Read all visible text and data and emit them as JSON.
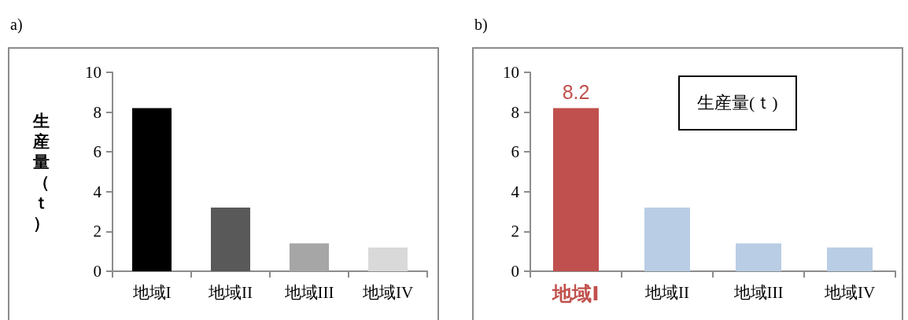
{
  "chart_data": [
    {
      "type": "bar",
      "title": "a)",
      "ylabel": "生産量（ｔ）",
      "categories": [
        "地域I",
        "地域II",
        "地域III",
        "地域IV"
      ],
      "values": [
        8.2,
        3.2,
        1.4,
        1.2
      ],
      "colors": [
        "#000000",
        "#595959",
        "#a6a6a6",
        "#d9d9d9"
      ],
      "ylim": [
        0,
        10
      ],
      "yticks": [
        0,
        2,
        4,
        6,
        8,
        10
      ],
      "grid": false
    },
    {
      "type": "bar",
      "title": "b)",
      "annotations": [
        "生産量(ｔ)"
      ],
      "categories": [
        "地域I",
        "地域II",
        "地域III",
        "地域IV"
      ],
      "values": [
        8.2,
        3.2,
        1.4,
        1.2
      ],
      "colors": [
        "#c0504d",
        "#b9cde5",
        "#b9cde5",
        "#b9cde5"
      ],
      "value_labels": [
        "8.2",
        null,
        null,
        null
      ],
      "ylim": [
        0,
        10
      ],
      "yticks": [
        0,
        2,
        4,
        6,
        8,
        10
      ],
      "grid": false
    }
  ]
}
